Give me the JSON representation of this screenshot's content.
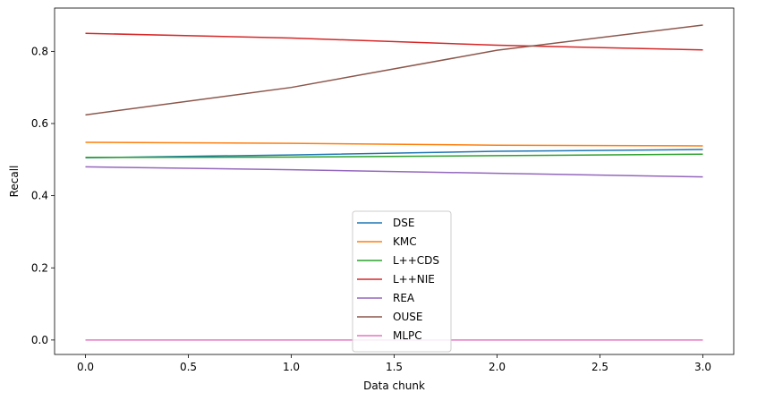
{
  "chart_data": {
    "type": "line",
    "title": "",
    "xlabel": "Data chunk",
    "ylabel": "Recall",
    "x": [
      0,
      1,
      2,
      3
    ],
    "xlim": [
      -0.15,
      3.15
    ],
    "ylim": [
      -0.04,
      0.92
    ],
    "xticks": [
      "0.0",
      "0.5",
      "1.0",
      "1.5",
      "2.0",
      "2.5",
      "3.0"
    ],
    "xtick_values": [
      0,
      0.5,
      1,
      1.5,
      2,
      2.5,
      3
    ],
    "yticks": [
      "0.0",
      "0.2",
      "0.4",
      "0.6",
      "0.8"
    ],
    "ytick_values": [
      0,
      0.2,
      0.4,
      0.6,
      0.8
    ],
    "grid": false,
    "legend_position": "lower-center",
    "series": [
      {
        "name": "DSE",
        "color": "#1f77b4",
        "values": [
          0.505,
          0.513,
          0.523,
          0.528
        ]
      },
      {
        "name": "KMC",
        "color": "#ff7f0e",
        "values": [
          0.548,
          0.545,
          0.54,
          0.538
        ]
      },
      {
        "name": "L++CDS",
        "color": "#2ca02c",
        "values": [
          0.506,
          0.507,
          0.511,
          0.515
        ]
      },
      {
        "name": "L++NIE",
        "color": "#d62728",
        "values": [
          0.85,
          0.837,
          0.817,
          0.804
        ]
      },
      {
        "name": "REA",
        "color": "#9467bd",
        "values": [
          0.48,
          0.472,
          0.462,
          0.452
        ]
      },
      {
        "name": "OUSE",
        "color": "#8c564b",
        "values": [
          0.624,
          0.7,
          0.803,
          0.873
        ]
      },
      {
        "name": "MLPC",
        "color": "#e377c2",
        "values": [
          0.0,
          0.0,
          0.0,
          0.0
        ]
      }
    ]
  }
}
